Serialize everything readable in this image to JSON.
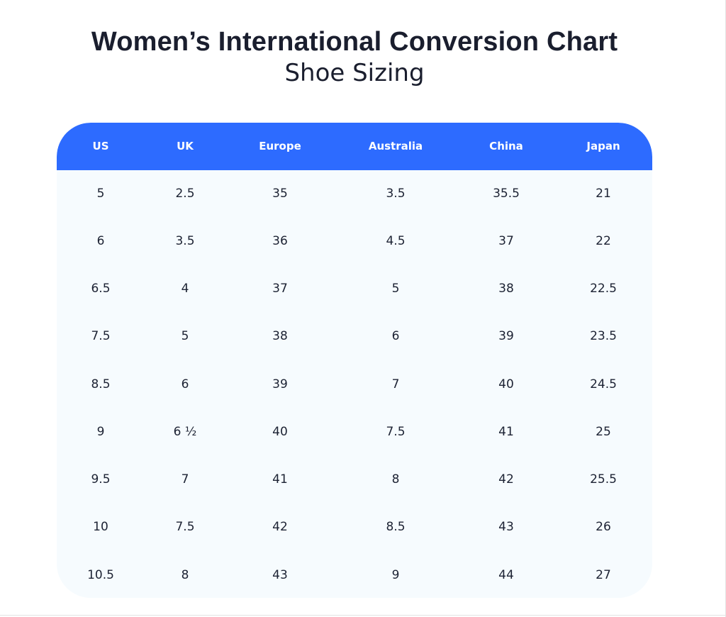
{
  "title": "Women’s International Conversion Chart",
  "subtitle": "Shoe Sizing",
  "table": {
    "headers": [
      "US",
      "UK",
      "Europe",
      "Australia",
      "China",
      "Japan"
    ],
    "rows": [
      [
        "5",
        "2.5",
        "35",
        "3.5",
        "35.5",
        "21"
      ],
      [
        "6",
        "3.5",
        "36",
        "4.5",
        "37",
        "22"
      ],
      [
        "6.5",
        "4",
        "37",
        "5",
        "38",
        "22.5"
      ],
      [
        "7.5",
        "5",
        "38",
        "6",
        "39",
        "23.5"
      ],
      [
        "8.5",
        "6",
        "39",
        "7",
        "40",
        "24.5"
      ],
      [
        "9",
        "6 ½",
        "40",
        "7.5",
        "41",
        "25"
      ],
      [
        "9.5",
        "7",
        "41",
        "8",
        "42",
        "25.5"
      ],
      [
        "10",
        "7.5",
        "42",
        "8.5",
        "43",
        "26"
      ],
      [
        "10.5",
        "8",
        "43",
        "9",
        "44",
        "27"
      ]
    ]
  },
  "colors": {
    "header_bg": "#2d6bff",
    "header_text": "#ffffff",
    "body_bg": "#f6fbfe",
    "text": "#1c2233"
  }
}
